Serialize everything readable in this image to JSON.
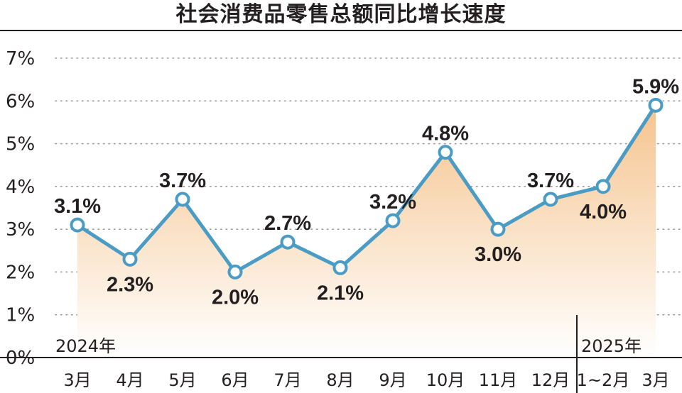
{
  "chart_data": {
    "type": "line",
    "title": "社会消费品零售总额同比增长速度",
    "categories": [
      "3月",
      "4月",
      "5月",
      "6月",
      "7月",
      "8月",
      "9月",
      "10月",
      "11月",
      "12月",
      "1~2月",
      "3月"
    ],
    "values": [
      3.1,
      2.3,
      3.7,
      2.0,
      2.7,
      2.1,
      3.2,
      4.8,
      3.0,
      3.7,
      4.0,
      5.9
    ],
    "data_labels": [
      "3.1%",
      "2.3%",
      "3.7%",
      "2.0%",
      "2.7%",
      "2.1%",
      "3.2%",
      "4.8%",
      "3.0%",
      "3.7%",
      "4.0%",
      "5.9%"
    ],
    "label_position": [
      "above",
      "below",
      "above",
      "below",
      "above",
      "below",
      "above",
      "above",
      "below",
      "above",
      "below",
      "above"
    ],
    "yticks": [
      "0%",
      "1%",
      "2%",
      "3%",
      "4%",
      "5%",
      "6%",
      "7%"
    ],
    "ylim": [
      0,
      7
    ],
    "year_labels": [
      "2024年",
      "2025年"
    ],
    "grid": "dotted horizontal",
    "colors": {
      "line": "#4a9cc5",
      "area_top": "#f5c48e",
      "area_bottom": "#ffffff",
      "text": "#231f20",
      "grid": "#9a9a9a"
    }
  }
}
